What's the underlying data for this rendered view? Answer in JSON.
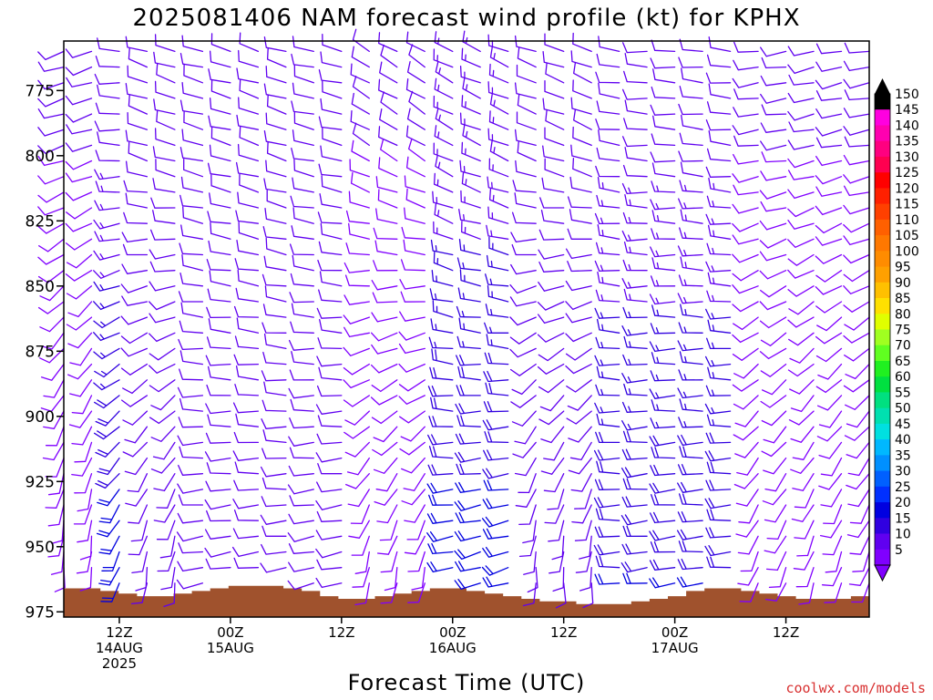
{
  "chart_data": {
    "type": "wind-barb time-height",
    "title": "2025081406 NAM forecast wind profile (kt) for KPHX",
    "xlabel": "Forecast Time (UTC)",
    "ylabel": "",
    "y_axis": {
      "unit": "hPa",
      "inverted": true,
      "range": [
        756,
        977
      ],
      "ticks": [
        775,
        800,
        825,
        850,
        875,
        900,
        925,
        950,
        975
      ],
      "tick_labels": [
        "775",
        "800",
        "825",
        "850",
        "875",
        "900",
        "925",
        "950",
        "975"
      ]
    },
    "x_axis": {
      "range": [
        "2025-08-14 06Z",
        "2025-08-17 21Z"
      ],
      "ticks": [
        {
          "time": "2025-08-14 12Z",
          "lines": [
            "12Z",
            "14AUG",
            "2025"
          ]
        },
        {
          "time": "2025-08-15 00Z",
          "lines": [
            "00Z",
            "15AUG"
          ]
        },
        {
          "time": "2025-08-15 12Z",
          "lines": [
            "12Z"
          ]
        },
        {
          "time": "2025-08-16 00Z",
          "lines": [
            "00Z",
            "16AUG"
          ]
        },
        {
          "time": "2025-08-16 12Z",
          "lines": [
            "12Z"
          ]
        },
        {
          "time": "2025-08-17 00Z",
          "lines": [
            "00Z",
            "17AUG"
          ]
        },
        {
          "time": "2025-08-17 12Z",
          "lines": [
            "12Z"
          ]
        }
      ]
    },
    "wind_regimes": [
      {
        "start": "2025-08-14 06Z",
        "end": "2025-08-14 10Z",
        "upper_dir_deg": 250,
        "upper_kt": 10,
        "low_dir_deg": 180,
        "low_kt": 8
      },
      {
        "start": "2025-08-14 10Z",
        "end": "2025-08-14 14Z",
        "upper_dir_deg": 270,
        "upper_kt": 12,
        "low_dir_deg": 200,
        "low_kt": 22
      },
      {
        "start": "2025-08-14 14Z",
        "end": "2025-08-14 21Z",
        "upper_dir_deg": 290,
        "upper_kt": 12,
        "low_dir_deg": 190,
        "low_kt": 10
      },
      {
        "start": "2025-08-14 21Z",
        "end": "2025-08-15 14Z",
        "upper_dir_deg": 285,
        "upper_kt": 12,
        "low_dir_deg": 260,
        "low_kt": 10
      },
      {
        "start": "2025-08-15 14Z",
        "end": "2025-08-15 22Z",
        "upper_dir_deg": 300,
        "upper_kt": 10,
        "low_dir_deg": 190,
        "low_kt": 8
      },
      {
        "start": "2025-08-15 22Z",
        "end": "2025-08-16 08Z",
        "upper_dir_deg": 295,
        "upper_kt": 13,
        "low_dir_deg": 255,
        "low_kt": 22
      },
      {
        "start": "2025-08-16 08Z",
        "end": "2025-08-16 16Z",
        "upper_dir_deg": 290,
        "upper_kt": 11,
        "low_dir_deg": 180,
        "low_kt": 10
      },
      {
        "start": "2025-08-16 16Z",
        "end": "2025-08-17 08Z",
        "upper_dir_deg": 275,
        "upper_kt": 12,
        "low_dir_deg": 265,
        "low_kt": 20
      },
      {
        "start": "2025-08-17 08Z",
        "end": "2025-08-17 21Z",
        "upper_dir_deg": 260,
        "upper_kt": 10,
        "low_dir_deg": 200,
        "low_kt": 8
      }
    ],
    "terrain": {
      "color": "#a0522d",
      "surface_hPa": [
        966,
        966,
        967,
        968,
        969,
        969,
        968,
        967,
        966,
        965,
        965,
        965,
        966,
        967,
        969,
        970,
        970,
        969,
        968,
        967,
        966,
        966,
        967,
        968,
        969,
        970,
        971,
        971,
        972,
        972,
        972,
        971,
        970,
        969,
        967,
        966,
        966,
        967,
        968,
        969,
        970,
        970,
        970,
        969
      ]
    },
    "colorbar": {
      "unit": "kt",
      "values": [
        5,
        10,
        15,
        20,
        25,
        30,
        35,
        40,
        45,
        50,
        55,
        60,
        65,
        70,
        75,
        80,
        85,
        90,
        95,
        100,
        105,
        110,
        115,
        120,
        125,
        130,
        135,
        140,
        145,
        150
      ],
      "colors": [
        "#8000ff",
        "#6000f0",
        "#3000e0",
        "#0000e0",
        "#0030ff",
        "#0060ff",
        "#0090ff",
        "#00b8ff",
        "#00e0e0",
        "#00e0b0",
        "#00e080",
        "#00e040",
        "#20f020",
        "#60ff20",
        "#a0ff20",
        "#e0ff00",
        "#ffe000",
        "#ffc000",
        "#ffa000",
        "#ff8c00",
        "#ff7800",
        "#ff6000",
        "#ff4000",
        "#ff2000",
        "#ff0000",
        "#ff0050",
        "#ff0080",
        "#ff00b0",
        "#ff00e0",
        "#000000"
      ],
      "labels": [
        "5",
        "10",
        "15",
        "20",
        "25",
        "30",
        "35",
        "40",
        "45",
        "50",
        "55",
        "60",
        "65",
        "70",
        "75",
        "80",
        "85",
        "90",
        "95",
        "100",
        "105",
        "110",
        "115",
        "120",
        "125",
        "130",
        "135",
        "140",
        "145",
        "150"
      ]
    }
  },
  "credit": "coolwx.com/models"
}
